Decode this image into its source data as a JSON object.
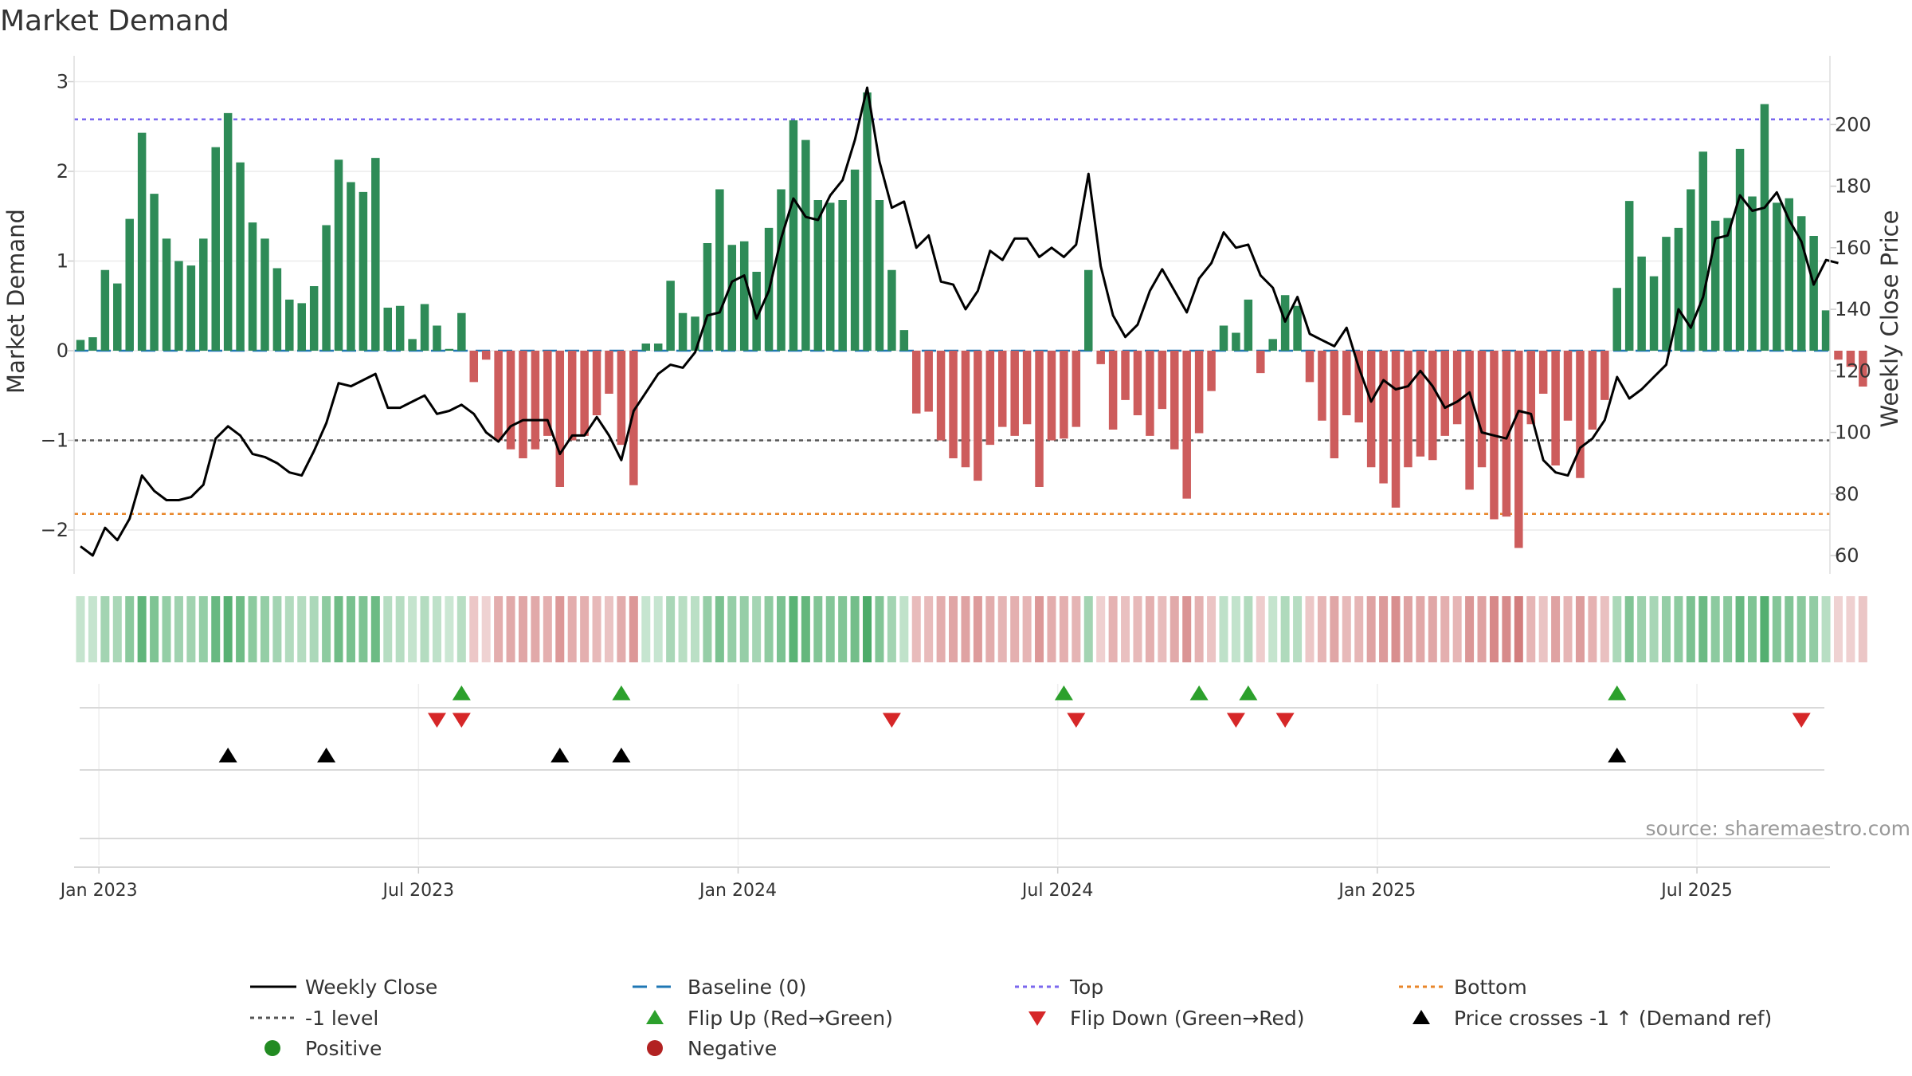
{
  "chart_data": {
    "type": "bar+line",
    "title": "Market Demand",
    "ylabel_left": "Market Demand",
    "ylabel_right": "Weekly Close Price",
    "source": "source: sharemaestro.com",
    "ylim_left": [
      -2.5,
      3.15
    ],
    "yticks_left": [
      3,
      2,
      1,
      0,
      -1,
      -2
    ],
    "ytick_labels_left": [
      "3",
      "2",
      "1",
      "0",
      "−1",
      "−2"
    ],
    "ylim_right": [
      52,
      216
    ],
    "yticks_right": [
      60,
      80,
      100,
      120,
      140,
      160,
      180,
      200
    ],
    "ytick_labels_right": [
      "60",
      "80",
      "100",
      "120",
      "140",
      "160",
      "180",
      "200"
    ],
    "x_tick_labels": [
      "Jan 2023",
      "Jul 2023",
      "Jan 2024",
      "Jul 2024",
      "Jan 2025",
      "Jul 2025"
    ],
    "x_tick_weeks": [
      1.5,
      27.5,
      53.5,
      79.5,
      105.5,
      131.5
    ],
    "reference_lines": {
      "baseline": 0,
      "top": 2.58,
      "bottom": -1.82,
      "minus_one": -1
    },
    "colors": {
      "positive": "#2e8b57",
      "negative": "#cd5c5c",
      "price": "#000000",
      "top": "#7b68ee",
      "bottom": "#e8862a",
      "baseline": "#1f77b4",
      "minus_one": "#555555",
      "flip_up": "#2ca02c",
      "flip_down": "#d62728",
      "cross": "#000000",
      "legend_positive": "#228b22",
      "legend_negative": "#b22222"
    },
    "weeks": 144,
    "demand": [
      0.12,
      0.15,
      0.9,
      0.75,
      1.47,
      2.43,
      1.75,
      1.25,
      1.0,
      0.95,
      1.25,
      2.27,
      2.65,
      2.1,
      1.43,
      1.25,
      0.92,
      0.57,
      0.53,
      0.72,
      1.4,
      2.13,
      1.88,
      1.77,
      2.15,
      0.48,
      0.5,
      0.13,
      0.52,
      0.28,
      0.02,
      0.42,
      -0.35,
      -0.1,
      -1.0,
      -1.1,
      -1.2,
      -1.1,
      -0.95,
      -1.52,
      -1.0,
      -0.95,
      -0.72,
      -0.48,
      -1.05,
      -1.5,
      0.08,
      0.08,
      0.78,
      0.42,
      0.38,
      1.2,
      1.8,
      1.18,
      1.22,
      0.88,
      1.37,
      1.8,
      2.57,
      2.35,
      1.68,
      1.65,
      1.68,
      2.02,
      2.88,
      1.68,
      0.9,
      0.23,
      -0.7,
      -0.68,
      -1.0,
      -1.2,
      -1.3,
      -1.45,
      -1.05,
      -0.85,
      -0.95,
      -0.82,
      -1.52,
      -1.0,
      -0.98,
      -0.85,
      0.9,
      -0.15,
      -0.88,
      -0.55,
      -0.72,
      -0.95,
      -0.65,
      -1.1,
      -1.65,
      -0.92,
      -0.45,
      0.28,
      0.2,
      0.57,
      -0.25,
      0.13,
      0.62,
      0.5,
      -0.35,
      -0.78,
      -1.2,
      -0.72,
      -0.8,
      -1.3,
      -1.48,
      -1.75,
      -1.3,
      -1.18,
      -1.22,
      -0.95,
      -0.82,
      -1.55,
      -1.3,
      -1.88,
      -1.85,
      -2.2,
      -0.82,
      -0.48,
      -1.28,
      -0.78,
      -1.42,
      -0.88,
      -0.55,
      0.7,
      1.67,
      1.05,
      0.83,
      1.27,
      1.37,
      1.8,
      2.22,
      1.45,
      1.48,
      2.25,
      1.72,
      2.75,
      1.65,
      1.7,
      1.5,
      1.28,
      0.45,
      -0.1,
      -0.18,
      -0.4
    ],
    "price": [
      63,
      60,
      69,
      65,
      72,
      86,
      81,
      78,
      78,
      79,
      83,
      98,
      102,
      99,
      93,
      92,
      90,
      87,
      86,
      94,
      103,
      116,
      115,
      117,
      119,
      108,
      108,
      110,
      112,
      106,
      107,
      109,
      106,
      100,
      97,
      102,
      104,
      104,
      104,
      93,
      99,
      99,
      105,
      99,
      91,
      107,
      113,
      119,
      122,
      121,
      126,
      138,
      139,
      149,
      151,
      137,
      146,
      163,
      176,
      170,
      169,
      177,
      182,
      195,
      212,
      188,
      173,
      175,
      160,
      164,
      149,
      148,
      140,
      146,
      159,
      156,
      163,
      163,
      157,
      160,
      157,
      161,
      184,
      154,
      138,
      131,
      135,
      146,
      153,
      146,
      139,
      150,
      155,
      165,
      160,
      161,
      151,
      147,
      136,
      144,
      132,
      130,
      128,
      134,
      121,
      110,
      117,
      114,
      115,
      120,
      115,
      108,
      110,
      113,
      100,
      99,
      98,
      107,
      106,
      91,
      87,
      86,
      95,
      98,
      104,
      118,
      111,
      114,
      118,
      122,
      140,
      134,
      144,
      163,
      164,
      177,
      172,
      173,
      178,
      169,
      162,
      148,
      156,
      155
    ],
    "flip_up_weeks": [
      31,
      44,
      80,
      91,
      95,
      125
    ],
    "flip_down_weeks": [
      29,
      31,
      66,
      81,
      94,
      98,
      140
    ],
    "cross_weeks": [
      12,
      20,
      39,
      44,
      125
    ]
  },
  "legend": {
    "items": [
      {
        "label": "Weekly Close",
        "type": "line-solid",
        "color": "#000000"
      },
      {
        "label": "Baseline (0)",
        "type": "line-dashed",
        "color": "#1f77b4"
      },
      {
        "label": "Top",
        "type": "line-dotted",
        "color": "#7b68ee"
      },
      {
        "label": "Bottom",
        "type": "line-dotted",
        "color": "#e8862a"
      },
      {
        "label": "-1 level",
        "type": "line-dotted",
        "color": "#555555"
      },
      {
        "label": "Flip Up (Red→Green)",
        "type": "triangle-up",
        "color": "#2ca02c"
      },
      {
        "label": "Flip Down (Green→Red)",
        "type": "triangle-down",
        "color": "#d62728"
      },
      {
        "label": "Price crosses -1 ↑ (Demand ref)",
        "type": "triangle-up",
        "color": "#000000"
      },
      {
        "label": "Positive",
        "type": "circle",
        "color": "#228b22"
      },
      {
        "label": "Negative",
        "type": "circle",
        "color": "#b22222"
      }
    ]
  }
}
